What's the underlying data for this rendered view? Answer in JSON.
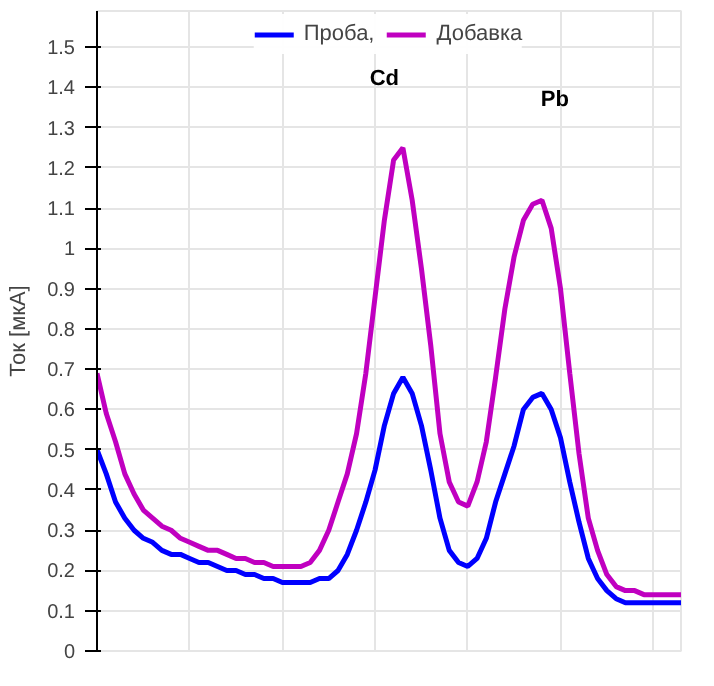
{
  "chart_data": {
    "type": "line",
    "ylabel": "Ток [мкА]",
    "categories": [
      null,
      null,
      null,
      null,
      null,
      null,
      null,
      null,
      null,
      null,
      null,
      null,
      null,
      null,
      null,
      null,
      null,
      null,
      null,
      null,
      null,
      null,
      null,
      null,
      null,
      null,
      null,
      null,
      null,
      null,
      null,
      null,
      null,
      null,
      null,
      null,
      null,
      null,
      null,
      null,
      null,
      null,
      null,
      null,
      null,
      null,
      null,
      null,
      null,
      null,
      null,
      null,
      null,
      null,
      null,
      null,
      null,
      null,
      null,
      null,
      null,
      null,
      null,
      null
    ],
    "series": [
      {
        "name": "Проба,",
        "color": "#0000ff",
        "values": [
          0.5,
          0.44,
          0.37,
          0.33,
          0.3,
          0.28,
          0.27,
          0.25,
          0.24,
          0.24,
          0.23,
          0.22,
          0.22,
          0.21,
          0.2,
          0.2,
          0.19,
          0.19,
          0.18,
          0.18,
          0.17,
          0.17,
          0.17,
          0.17,
          0.18,
          0.18,
          0.2,
          0.24,
          0.3,
          0.37,
          0.45,
          0.56,
          0.64,
          0.68,
          0.64,
          0.56,
          0.45,
          0.33,
          0.25,
          0.22,
          0.21,
          0.23,
          0.28,
          0.37,
          0.44,
          0.51,
          0.6,
          0.63,
          0.64,
          0.6,
          0.53,
          0.42,
          0.32,
          0.23,
          0.18,
          0.15,
          0.13,
          0.12,
          0.12,
          0.12,
          0.12,
          0.12,
          0.12,
          0.12
        ]
      },
      {
        "name": "Добавка",
        "color": "#c000c0",
        "values": [
          0.69,
          0.59,
          0.52,
          0.44,
          0.39,
          0.35,
          0.33,
          0.31,
          0.3,
          0.28,
          0.27,
          0.26,
          0.25,
          0.25,
          0.24,
          0.23,
          0.23,
          0.22,
          0.22,
          0.21,
          0.21,
          0.21,
          0.21,
          0.22,
          0.25,
          0.3,
          0.37,
          0.44,
          0.54,
          0.69,
          0.88,
          1.07,
          1.22,
          1.25,
          1.12,
          0.95,
          0.76,
          0.54,
          0.42,
          0.37,
          0.36,
          0.42,
          0.52,
          0.68,
          0.85,
          0.98,
          1.07,
          1.11,
          1.12,
          1.05,
          0.9,
          0.69,
          0.49,
          0.33,
          0.25,
          0.19,
          0.16,
          0.15,
          0.15,
          0.14,
          0.14,
          0.14,
          0.14,
          0.14
        ]
      }
    ],
    "ylim": [
      0,
      1.59
    ],
    "yticks": [
      0,
      0.1,
      0.2,
      0.3,
      0.4,
      0.5,
      0.6,
      0.7,
      0.8,
      0.9,
      1,
      1.1,
      1.2,
      1.3,
      1.4,
      1.5
    ],
    "tick_labels": "y",
    "grid": true,
    "legend": "top",
    "annotations": [
      "Cd",
      "Pb"
    ]
  }
}
